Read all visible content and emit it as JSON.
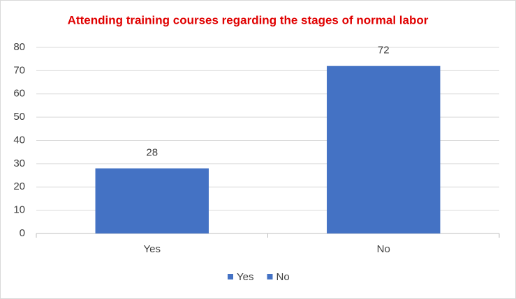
{
  "chart_data": {
    "type": "bar",
    "title": "Attending training courses regarding the stages of normal labor",
    "categories": [
      "Yes",
      "No"
    ],
    "values": [
      28,
      72
    ],
    "color": "#4472c4",
    "ylim": [
      0,
      80
    ],
    "yticks": [
      0,
      10,
      20,
      30,
      40,
      50,
      60,
      70,
      80
    ],
    "grid": true,
    "legend": "bottom"
  }
}
